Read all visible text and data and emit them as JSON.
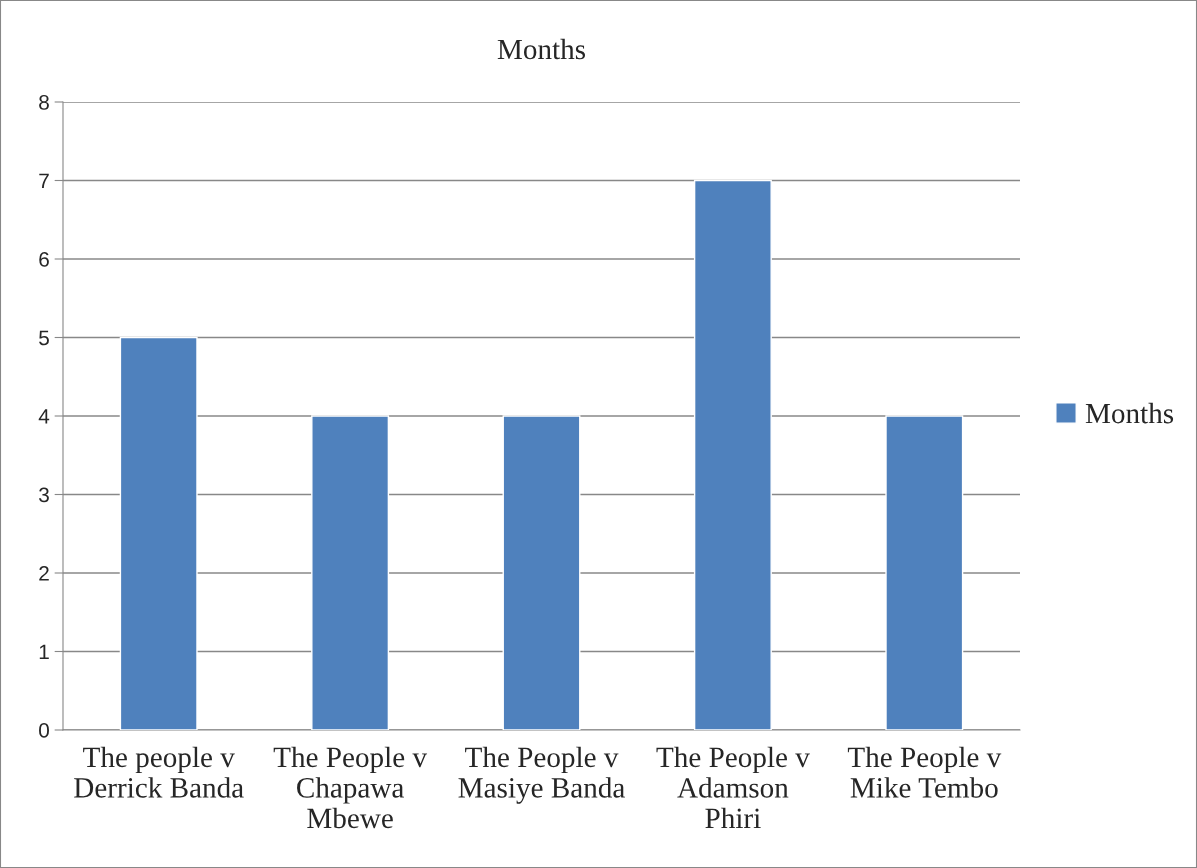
{
  "chart_data": {
    "type": "bar",
    "title": "Months",
    "categories": [
      "The people v\nDerrick Banda",
      "The People v\nChapawa\nMbewe",
      "The People v\nMasiye Banda",
      "The People v\nAdamson\nPhiri",
      "The People v\nMike Tembo"
    ],
    "series": [
      {
        "name": "Months",
        "color": "#4f81bd",
        "values": [
          5,
          4,
          4,
          7,
          4
        ]
      }
    ],
    "ylim": [
      0,
      8
    ],
    "yticks": [
      0,
      1,
      2,
      3,
      4,
      5,
      6,
      7,
      8
    ],
    "grid": "y",
    "legend": "right"
  }
}
